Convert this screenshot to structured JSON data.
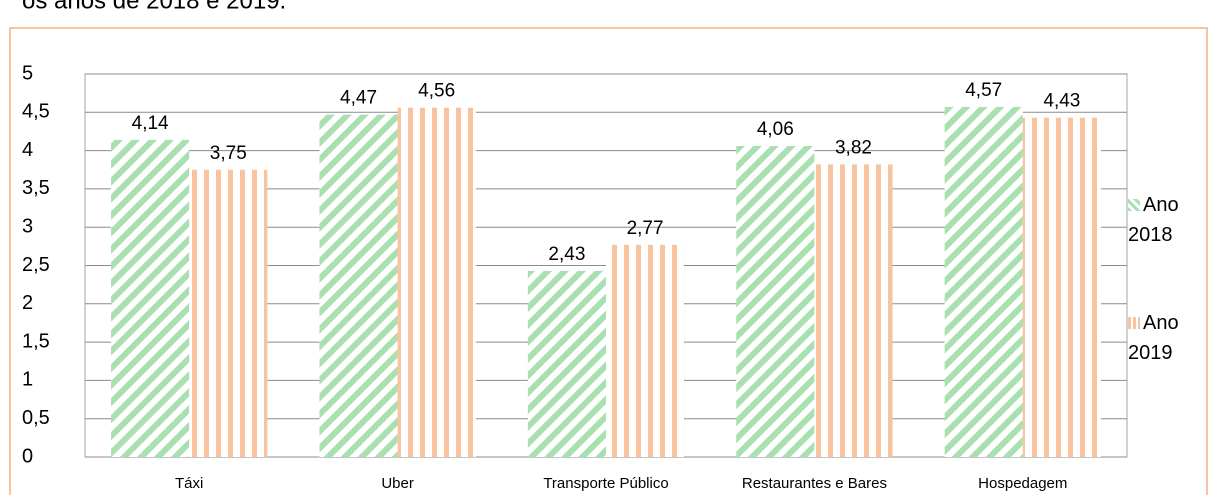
{
  "chart_data": {
    "type": "bar",
    "title": "os anos de 2018 e 2019.",
    "categories": [
      "Táxi",
      "Uber",
      "Transporte Público",
      "Restaurantes e Bares",
      "Hospedagem"
    ],
    "series": [
      {
        "name": "Ano 2018",
        "color": "#a9e0b0",
        "values": [
          4.14,
          4.47,
          2.43,
          4.06,
          4.57
        ],
        "value_labels": [
          "4,14",
          "4,47",
          "2,43",
          "4,06",
          "4,57"
        ]
      },
      {
        "name": "Ano 2019",
        "color": "#f8c4a0",
        "values": [
          3.75,
          4.56,
          2.77,
          3.82,
          4.43
        ],
        "value_labels": [
          "3,75",
          "4,56",
          "2,77",
          "3,82",
          "4,43"
        ]
      }
    ],
    "ylim": [
      0,
      5
    ],
    "yticks": [
      0,
      {
        "value": 0.5,
        "label": "0,5"
      },
      1,
      {
        "value": 1.5,
        "label": "1,5"
      },
      2,
      {
        "value": 2.5,
        "label": "2,5"
      },
      3,
      {
        "value": 3.5,
        "label": "3,5"
      },
      4,
      {
        "value": 4.5,
        "label": "4,5"
      },
      5
    ],
    "grid": true,
    "legend": "right"
  }
}
